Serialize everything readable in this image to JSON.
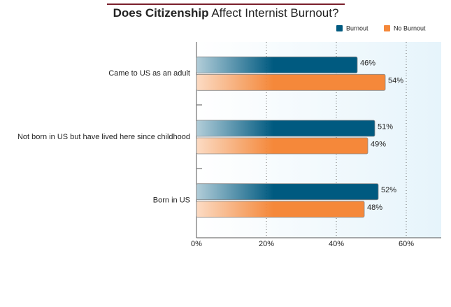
{
  "chart_data": {
    "type": "hbar",
    "title": [
      "Does Citizenship",
      "Affect Internist Burnout?"
    ],
    "categories": [
      "Came to US as an adult",
      "Not born in US but have lived here since childhood",
      "Born in US"
    ],
    "series": [
      {
        "name": "Burnout",
        "color": "#005a80",
        "values": [
          46,
          51,
          52
        ],
        "value_labels": [
          "46%",
          "51%",
          "52%"
        ]
      },
      {
        "name": "No Burnout",
        "color": "#f5883a",
        "values": [
          54,
          49,
          48
        ],
        "value_labels": [
          "54%",
          "49%",
          "48%"
        ]
      }
    ],
    "xlim": [
      0,
      70
    ],
    "xticks": [
      {
        "value": 0,
        "label": "0%"
      },
      {
        "value": 20,
        "label": "20%"
      },
      {
        "value": 40,
        "label": "40%"
      },
      {
        "value": 60,
        "label": "60%"
      }
    ],
    "grid": true,
    "legend": "top-right"
  }
}
